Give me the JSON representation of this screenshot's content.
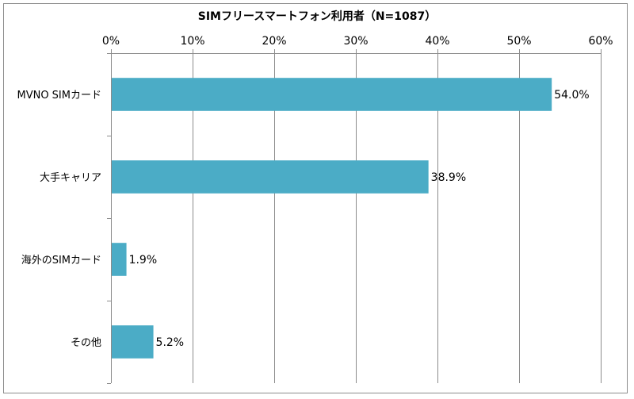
{
  "chart_data": {
    "type": "bar",
    "orientation": "horizontal",
    "title": "SIMフリースマートフォン利用者（N=1087）",
    "categories": [
      "MVNO SIMカード",
      "大手キャリア",
      "海外のSIMカード",
      "その他"
    ],
    "values": [
      54.0,
      38.9,
      1.9,
      5.2
    ],
    "value_labels": [
      "54.0%",
      "38.9%",
      "1.9%",
      "5.2%"
    ],
    "xlim": [
      0,
      60
    ],
    "x_ticks": [
      0,
      10,
      20,
      30,
      40,
      50,
      60
    ],
    "x_tick_labels": [
      "0%",
      "10%",
      "20%",
      "30%",
      "40%",
      "50%",
      "60%"
    ],
    "x_axis_position": "top",
    "grid": true,
    "legend": "none",
    "bar_color": "#4bacc6",
    "grid_color": "#8c8c8c"
  }
}
